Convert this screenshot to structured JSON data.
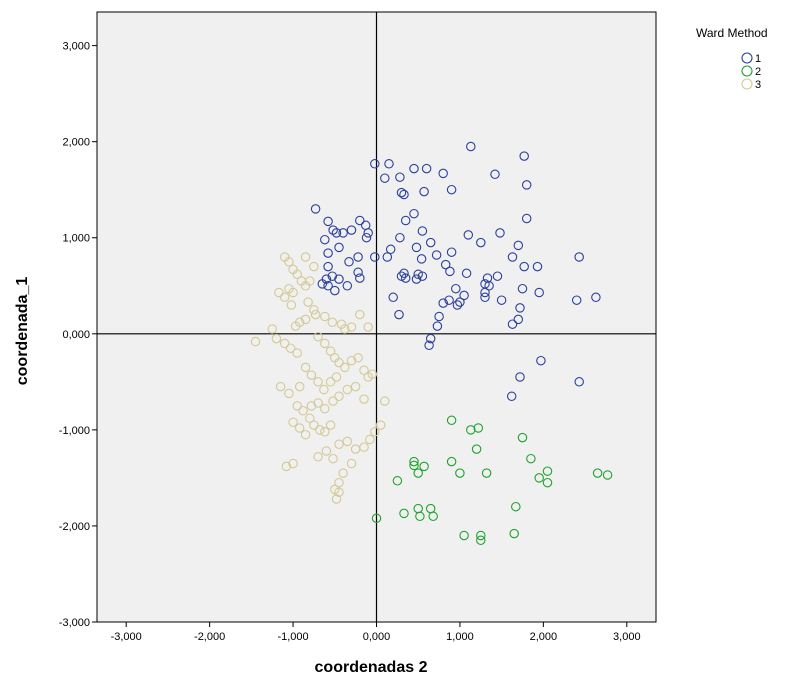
{
  "chart_data": {
    "type": "scatter",
    "title": "",
    "xlabel": "coordenadas 2",
    "ylabel": "coordenada_1",
    "xlim": [
      -3.35,
      3.35
    ],
    "ylim": [
      -3.0,
      3.35
    ],
    "x_ticks": [
      -3,
      -2,
      -1,
      0,
      1,
      2,
      3
    ],
    "x_tick_labels": [
      "-3,000",
      "-2,000",
      "-1,000",
      "0,000",
      "1,000",
      "2,000",
      "3,000"
    ],
    "y_ticks": [
      -3,
      -2,
      -1,
      0,
      1,
      2,
      3
    ],
    "y_tick_labels": [
      "-3,000",
      "-2,000",
      "-1,000",
      "0,000",
      "1,000",
      "2,000",
      "3,000"
    ],
    "grid": false,
    "reference_lines": {
      "x": 0,
      "y": 0
    },
    "plot_background": "#f0f0f0",
    "legend": {
      "title": "Ward Method",
      "placement": "right"
    },
    "series": [
      {
        "name": "1",
        "color": "#2b3f9e",
        "points": [
          [
            -0.02,
            1.77
          ],
          [
            0.15,
            1.77
          ],
          [
            0.45,
            1.72
          ],
          [
            0.6,
            1.72
          ],
          [
            0.28,
            1.63
          ],
          [
            0.1,
            1.62
          ],
          [
            0.3,
            1.47
          ],
          [
            0.33,
            1.45
          ],
          [
            0.57,
            1.48
          ],
          [
            0.9,
            1.5
          ],
          [
            0.8,
            1.67
          ],
          [
            1.13,
            1.95
          ],
          [
            1.77,
            1.85
          ],
          [
            1.42,
            1.66
          ],
          [
            1.8,
            1.55
          ],
          [
            -0.73,
            1.3
          ],
          [
            -0.58,
            1.17
          ],
          [
            -0.52,
            1.08
          ],
          [
            -0.48,
            1.05
          ],
          [
            -0.4,
            1.05
          ],
          [
            -0.3,
            1.08
          ],
          [
            -0.2,
            1.18
          ],
          [
            -0.13,
            1.13
          ],
          [
            -0.1,
            1.05
          ],
          [
            -0.12,
            1.0
          ],
          [
            -0.62,
            0.98
          ],
          [
            -0.45,
            0.9
          ],
          [
            -0.58,
            0.84
          ],
          [
            -0.22,
            0.8
          ],
          [
            -0.02,
            0.8
          ],
          [
            0.13,
            0.8
          ],
          [
            0.17,
            0.88
          ],
          [
            0.35,
            1.18
          ],
          [
            0.45,
            1.25
          ],
          [
            0.55,
            1.07
          ],
          [
            0.65,
            0.95
          ],
          [
            0.72,
            0.82
          ],
          [
            0.28,
            1.0
          ],
          [
            0.48,
            0.9
          ],
          [
            0.54,
            0.78
          ],
          [
            -0.58,
            0.7
          ],
          [
            -0.6,
            0.57
          ],
          [
            -0.53,
            0.6
          ],
          [
            -0.45,
            0.57
          ],
          [
            -0.33,
            0.75
          ],
          [
            -0.22,
            0.64
          ],
          [
            -0.2,
            0.58
          ],
          [
            -0.35,
            0.5
          ],
          [
            -0.65,
            0.52
          ],
          [
            -0.58,
            0.5
          ],
          [
            -0.5,
            0.45
          ],
          [
            0.3,
            0.6
          ],
          [
            0.33,
            0.63
          ],
          [
            0.35,
            0.58
          ],
          [
            0.5,
            0.62
          ],
          [
            0.55,
            0.6
          ],
          [
            0.48,
            0.57
          ],
          [
            1.1,
            1.03
          ],
          [
            1.25,
            0.95
          ],
          [
            1.48,
            1.05
          ],
          [
            1.63,
            0.8
          ],
          [
            1.7,
            0.92
          ],
          [
            1.8,
            1.2
          ],
          [
            0.83,
            0.72
          ],
          [
            0.88,
            0.65
          ],
          [
            0.9,
            0.85
          ],
          [
            1.08,
            0.63
          ],
          [
            1.3,
            0.52
          ],
          [
            1.33,
            0.58
          ],
          [
            1.45,
            0.6
          ],
          [
            1.77,
            0.7
          ],
          [
            1.93,
            0.7
          ],
          [
            2.43,
            0.8
          ],
          [
            2.4,
            0.35
          ],
          [
            2.63,
            0.38
          ],
          [
            1.95,
            0.43
          ],
          [
            1.75,
            0.47
          ],
          [
            1.72,
            0.27
          ],
          [
            1.63,
            0.1
          ],
          [
            1.7,
            0.15
          ],
          [
            1.3,
            0.43
          ],
          [
            1.3,
            0.38
          ],
          [
            1.5,
            0.35
          ],
          [
            1.35,
            0.5
          ],
          [
            0.2,
            0.38
          ],
          [
            0.27,
            0.2
          ],
          [
            0.8,
            0.32
          ],
          [
            0.87,
            0.35
          ],
          [
            0.97,
            0.3
          ],
          [
            1.0,
            0.33
          ],
          [
            0.75,
            0.18
          ],
          [
            0.73,
            0.08
          ],
          [
            0.65,
            -0.05
          ],
          [
            0.63,
            -0.12
          ],
          [
            1.97,
            -0.28
          ],
          [
            1.72,
            -0.45
          ],
          [
            1.62,
            -0.65
          ],
          [
            2.43,
            -0.5
          ],
          [
            0.95,
            0.47
          ],
          [
            1.05,
            0.4
          ]
        ]
      },
      {
        "name": "2",
        "color": "#1ea32c",
        "points": [
          [
            0.9,
            -0.9
          ],
          [
            1.13,
            -1.0
          ],
          [
            1.22,
            -0.98
          ],
          [
            1.75,
            -1.08
          ],
          [
            0.45,
            -1.33
          ],
          [
            0.45,
            -1.37
          ],
          [
            0.57,
            -1.38
          ],
          [
            0.5,
            -1.45
          ],
          [
            0.9,
            -1.33
          ],
          [
            1.0,
            -1.45
          ],
          [
            1.32,
            -1.45
          ],
          [
            1.2,
            -1.2
          ],
          [
            1.85,
            -1.3
          ],
          [
            2.05,
            -1.43
          ],
          [
            1.95,
            -1.5
          ],
          [
            2.05,
            -1.55
          ],
          [
            2.65,
            -1.45
          ],
          [
            2.77,
            -1.47
          ],
          [
            0.25,
            -1.53
          ],
          [
            0.0,
            -1.92
          ],
          [
            0.33,
            -1.87
          ],
          [
            0.5,
            -1.82
          ],
          [
            0.52,
            -1.9
          ],
          [
            0.65,
            -1.82
          ],
          [
            0.68,
            -1.9
          ],
          [
            1.05,
            -2.1
          ],
          [
            1.25,
            -2.1
          ],
          [
            1.25,
            -2.15
          ],
          [
            1.65,
            -2.08
          ],
          [
            1.67,
            -1.8
          ]
        ]
      },
      {
        "name": "3",
        "color": "#d3c995",
        "points": [
          [
            -1.1,
            0.8
          ],
          [
            -1.05,
            0.75
          ],
          [
            -1.0,
            0.67
          ],
          [
            -0.95,
            0.62
          ],
          [
            -0.9,
            0.55
          ],
          [
            -0.85,
            0.8
          ],
          [
            -0.75,
            0.7
          ],
          [
            -0.8,
            0.55
          ],
          [
            -0.85,
            0.5
          ],
          [
            -1.0,
            0.43
          ],
          [
            -1.05,
            0.47
          ],
          [
            -1.17,
            0.43
          ],
          [
            -1.1,
            0.38
          ],
          [
            -1.02,
            0.3
          ],
          [
            -0.82,
            0.33
          ],
          [
            -0.75,
            0.25
          ],
          [
            -0.73,
            0.2
          ],
          [
            -0.85,
            0.15
          ],
          [
            -0.92,
            0.12
          ],
          [
            -0.97,
            0.08
          ],
          [
            -0.62,
            0.18
          ],
          [
            -0.53,
            0.12
          ],
          [
            -0.42,
            0.1
          ],
          [
            -0.38,
            0.05
          ],
          [
            -0.3,
            0.07
          ],
          [
            -0.2,
            0.2
          ],
          [
            -0.1,
            0.07
          ],
          [
            -1.25,
            0.05
          ],
          [
            -1.2,
            -0.05
          ],
          [
            -1.1,
            -0.1
          ],
          [
            -1.03,
            -0.15
          ],
          [
            -0.95,
            -0.2
          ],
          [
            -1.45,
            -0.08
          ],
          [
            -0.7,
            -0.03
          ],
          [
            -0.62,
            -0.1
          ],
          [
            -0.55,
            -0.18
          ],
          [
            -0.5,
            -0.25
          ],
          [
            -0.45,
            -0.3
          ],
          [
            -0.38,
            -0.35
          ],
          [
            -0.3,
            -0.28
          ],
          [
            -0.22,
            -0.25
          ],
          [
            -0.85,
            -0.35
          ],
          [
            -0.78,
            -0.43
          ],
          [
            -0.7,
            -0.5
          ],
          [
            -0.63,
            -0.58
          ],
          [
            -0.55,
            -0.5
          ],
          [
            -0.48,
            -0.45
          ],
          [
            -0.15,
            -0.38
          ],
          [
            -0.1,
            -0.45
          ],
          [
            -0.05,
            -0.42
          ],
          [
            -1.15,
            -0.55
          ],
          [
            -1.05,
            -0.62
          ],
          [
            -0.92,
            -0.55
          ],
          [
            -0.95,
            -0.75
          ],
          [
            -0.88,
            -0.8
          ],
          [
            -0.78,
            -0.75
          ],
          [
            -0.7,
            -0.72
          ],
          [
            -0.62,
            -0.78
          ],
          [
            -0.52,
            -0.7
          ],
          [
            -0.45,
            -0.65
          ],
          [
            -0.35,
            -0.58
          ],
          [
            -0.25,
            -0.55
          ],
          [
            -0.15,
            -0.68
          ],
          [
            0.1,
            -0.7
          ],
          [
            0.05,
            -0.95
          ],
          [
            -0.02,
            -1.02
          ],
          [
            -0.08,
            -1.1
          ],
          [
            -0.15,
            -1.18
          ],
          [
            -0.25,
            -1.2
          ],
          [
            -0.35,
            -1.12
          ],
          [
            -0.45,
            -1.15
          ],
          [
            -0.52,
            -1.3
          ],
          [
            -0.6,
            -1.22
          ],
          [
            -0.7,
            -1.28
          ],
          [
            -0.85,
            -1.05
          ],
          [
            -0.92,
            -0.98
          ],
          [
            -1.0,
            -0.92
          ],
          [
            -0.8,
            -0.88
          ],
          [
            -0.75,
            -0.95
          ],
          [
            -0.68,
            -1.0
          ],
          [
            -1.0,
            -1.35
          ],
          [
            -1.08,
            -1.38
          ],
          [
            -0.3,
            -1.35
          ],
          [
            -0.4,
            -1.45
          ],
          [
            -0.45,
            -1.55
          ],
          [
            -0.5,
            -1.62
          ],
          [
            -0.45,
            -1.65
          ],
          [
            -0.48,
            -1.72
          ],
          [
            -0.62,
            -1.02
          ],
          [
            -0.55,
            -0.95
          ]
        ]
      }
    ]
  }
}
